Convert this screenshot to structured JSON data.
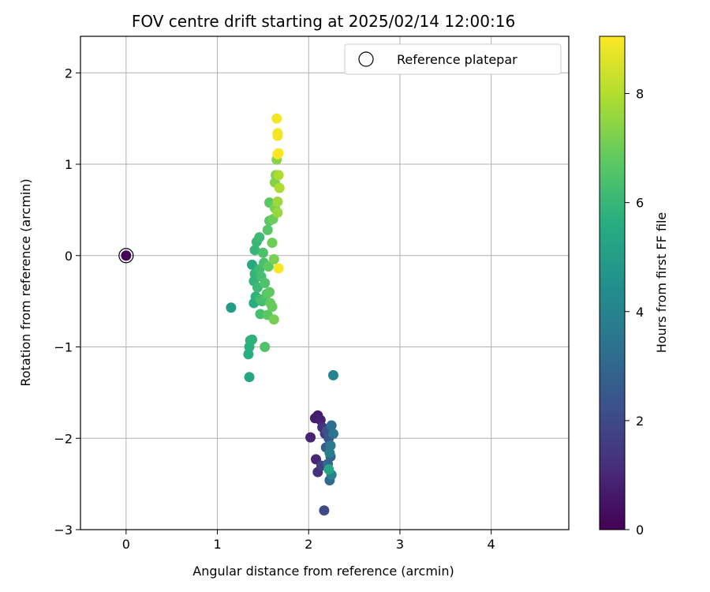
{
  "chart_data": {
    "type": "scatter",
    "title": "FOV centre drift starting at 2025/02/14 12:00:16",
    "xlabel": "Angular distance from reference (arcmin)",
    "ylabel": "Rotation from reference (arcmin)",
    "xlim": [
      -0.5,
      4.85
    ],
    "ylim": [
      -3.0,
      2.4
    ],
    "xticks": [
      "0",
      "1",
      "2",
      "3",
      "4"
    ],
    "yticks": [
      "−3",
      "−2",
      "−1",
      "0",
      "1",
      "2"
    ],
    "grid": true,
    "legend": {
      "label": "Reference platepar",
      "placement": "top-right"
    },
    "colorbar": {
      "label": "Hours from first FF file",
      "range": [
        0,
        9.05
      ],
      "ticks": [
        "0",
        "2",
        "4",
        "6",
        "8"
      ],
      "colormap": "viridis"
    },
    "reference_point": {
      "x": 0.0,
      "y": 0.0
    },
    "points": [
      {
        "x": 0.0,
        "y": 0.0,
        "c": 0.1
      },
      {
        "x": 2.1,
        "y": -1.75,
        "c": 0.6
      },
      {
        "x": 2.07,
        "y": -1.78,
        "c": 0.7
      },
      {
        "x": 2.13,
        "y": -1.8,
        "c": 0.8
      },
      {
        "x": 2.02,
        "y": -1.99,
        "c": 0.9
      },
      {
        "x": 2.08,
        "y": -2.23,
        "c": 1.0
      },
      {
        "x": 2.1,
        "y": -2.37,
        "c": 1.2
      },
      {
        "x": 2.15,
        "y": -1.88,
        "c": 1.3
      },
      {
        "x": 2.18,
        "y": -1.95,
        "c": 1.5
      },
      {
        "x": 2.14,
        "y": -2.3,
        "c": 1.7
      },
      {
        "x": 2.17,
        "y": -2.79,
        "c": 2.0
      },
      {
        "x": 2.2,
        "y": -1.92,
        "c": 2.2
      },
      {
        "x": 2.22,
        "y": -2.0,
        "c": 2.4
      },
      {
        "x": 2.19,
        "y": -2.1,
        "c": 2.6
      },
      {
        "x": 2.24,
        "y": -2.2,
        "c": 2.8
      },
      {
        "x": 2.21,
        "y": -2.28,
        "c": 3.0
      },
      {
        "x": 2.23,
        "y": -2.46,
        "c": 3.1
      },
      {
        "x": 2.25,
        "y": -1.86,
        "c": 3.3
      },
      {
        "x": 2.27,
        "y": -1.95,
        "c": 3.5
      },
      {
        "x": 2.24,
        "y": -2.08,
        "c": 3.6
      },
      {
        "x": 2.23,
        "y": -2.16,
        "c": 3.8
      },
      {
        "x": 2.25,
        "y": -2.4,
        "c": 4.0
      },
      {
        "x": 2.27,
        "y": -1.31,
        "c": 4.1
      },
      {
        "x": 2.22,
        "y": -2.34,
        "c": 5.3
      },
      {
        "x": 1.15,
        "y": -0.57,
        "c": 5.0
      },
      {
        "x": 1.35,
        "y": -1.33,
        "c": 5.4
      },
      {
        "x": 1.34,
        "y": -1.08,
        "c": 5.6
      },
      {
        "x": 1.35,
        "y": -1.0,
        "c": 5.7
      },
      {
        "x": 1.36,
        "y": -0.93,
        "c": 5.7
      },
      {
        "x": 1.38,
        "y": -0.92,
        "c": 5.8
      },
      {
        "x": 1.38,
        "y": -0.1,
        "c": 5.5
      },
      {
        "x": 1.4,
        "y": -0.52,
        "c": 5.6
      },
      {
        "x": 1.42,
        "y": -0.45,
        "c": 5.8
      },
      {
        "x": 1.4,
        "y": -0.28,
        "c": 5.9
      },
      {
        "x": 1.41,
        "y": -0.2,
        "c": 5.9
      },
      {
        "x": 1.41,
        "y": 0.06,
        "c": 6.0
      },
      {
        "x": 1.43,
        "y": 0.15,
        "c": 6.0
      },
      {
        "x": 1.46,
        "y": 0.2,
        "c": 6.1
      },
      {
        "x": 1.44,
        "y": -0.35,
        "c": 6.1
      },
      {
        "x": 1.46,
        "y": -0.15,
        "c": 6.2
      },
      {
        "x": 1.47,
        "y": -0.48,
        "c": 6.2
      },
      {
        "x": 1.47,
        "y": -0.64,
        "c": 6.3
      },
      {
        "x": 1.49,
        "y": -0.5,
        "c": 6.3
      },
      {
        "x": 1.48,
        "y": -0.23,
        "c": 6.3
      },
      {
        "x": 1.5,
        "y": 0.03,
        "c": 6.4
      },
      {
        "x": 1.52,
        "y": -1.0,
        "c": 6.5
      },
      {
        "x": 1.51,
        "y": -0.08,
        "c": 6.4
      },
      {
        "x": 1.52,
        "y": -0.3,
        "c": 6.5
      },
      {
        "x": 1.54,
        "y": -0.42,
        "c": 6.6
      },
      {
        "x": 1.55,
        "y": 0.28,
        "c": 6.6
      },
      {
        "x": 1.55,
        "y": -0.65,
        "c": 6.7
      },
      {
        "x": 1.57,
        "y": 0.38,
        "c": 6.7
      },
      {
        "x": 1.57,
        "y": 0.58,
        "c": 6.7
      },
      {
        "x": 1.56,
        "y": -0.12,
        "c": 6.8
      },
      {
        "x": 1.57,
        "y": -0.4,
        "c": 6.8
      },
      {
        "x": 1.58,
        "y": -0.52,
        "c": 6.9
      },
      {
        "x": 1.6,
        "y": -0.56,
        "c": 6.9
      },
      {
        "x": 1.6,
        "y": 0.14,
        "c": 7.0
      },
      {
        "x": 1.61,
        "y": 0.4,
        "c": 7.0
      },
      {
        "x": 1.62,
        "y": -0.7,
        "c": 7.1
      },
      {
        "x": 1.62,
        "y": -0.04,
        "c": 7.2
      },
      {
        "x": 1.63,
        "y": 0.52,
        "c": 7.2
      },
      {
        "x": 1.63,
        "y": 0.8,
        "c": 7.3
      },
      {
        "x": 1.64,
        "y": 0.88,
        "c": 7.3
      },
      {
        "x": 1.65,
        "y": 1.05,
        "c": 7.4
      },
      {
        "x": 1.66,
        "y": 0.47,
        "c": 7.6
      },
      {
        "x": 1.66,
        "y": 0.59,
        "c": 7.7
      },
      {
        "x": 1.67,
        "y": 0.88,
        "c": 7.9
      },
      {
        "x": 1.68,
        "y": 0.74,
        "c": 7.9
      },
      {
        "x": 1.65,
        "y": 1.5,
        "c": 8.9
      },
      {
        "x": 1.66,
        "y": 1.34,
        "c": 8.9
      },
      {
        "x": 1.66,
        "y": 1.31,
        "c": 8.9
      },
      {
        "x": 1.67,
        "y": 1.12,
        "c": 9.0
      },
      {
        "x": 1.66,
        "y": 1.11,
        "c": 9.0
      },
      {
        "x": 1.67,
        "y": -0.14,
        "c": 9.0
      }
    ]
  }
}
